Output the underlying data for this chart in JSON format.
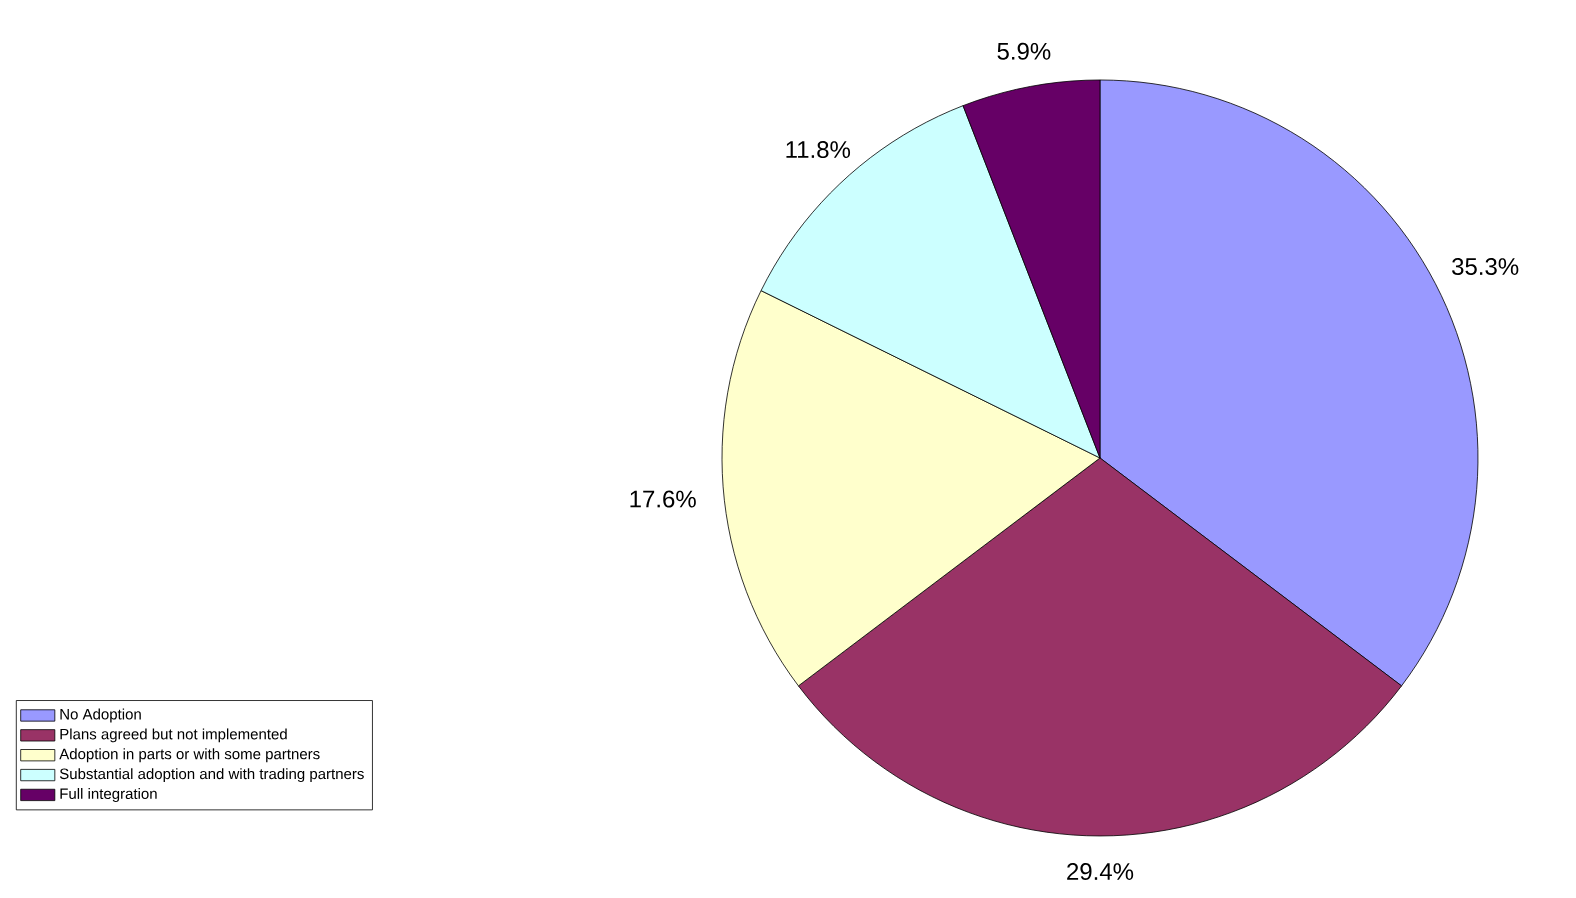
{
  "chart_data": {
    "type": "pie",
    "categories": [
      "No Adoption",
      "Plans agreed but not implemented",
      "Adoption in parts or with some partners",
      "Substantial adoption and with trading partners",
      "Full integration"
    ],
    "values": [
      35.3,
      29.4,
      17.6,
      11.8,
      5.9
    ],
    "value_labels": [
      "35.3%",
      "29.4%",
      "17.6%",
      "11.8%",
      "5.9%"
    ],
    "colors": [
      "#9999ff",
      "#993366",
      "#ffffcc",
      "#ccffff",
      "#660066"
    ],
    "legend": "bottom left"
  }
}
